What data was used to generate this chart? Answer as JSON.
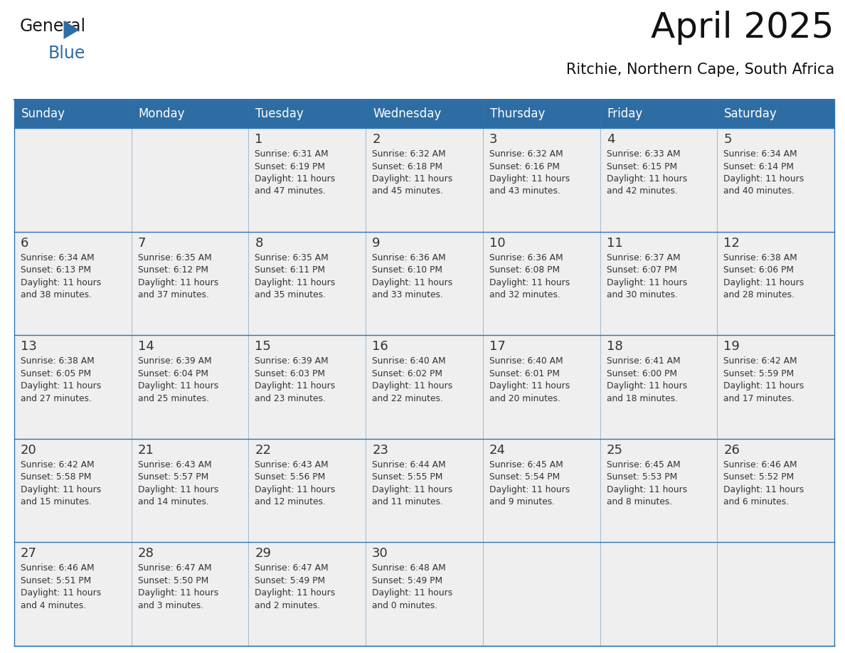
{
  "title": "April 2025",
  "subtitle": "Ritchie, Northern Cape, South Africa",
  "header_bg_color": "#2E6DA4",
  "header_text_color": "#FFFFFF",
  "cell_bg_color": "#EFEFEF",
  "text_color": "#333333",
  "line_color": "#2E75B6",
  "days_of_week": [
    "Sunday",
    "Monday",
    "Tuesday",
    "Wednesday",
    "Thursday",
    "Friday",
    "Saturday"
  ],
  "weeks": [
    [
      {
        "day": "",
        "info": ""
      },
      {
        "day": "",
        "info": ""
      },
      {
        "day": "1",
        "info": "Sunrise: 6:31 AM\nSunset: 6:19 PM\nDaylight: 11 hours\nand 47 minutes."
      },
      {
        "day": "2",
        "info": "Sunrise: 6:32 AM\nSunset: 6:18 PM\nDaylight: 11 hours\nand 45 minutes."
      },
      {
        "day": "3",
        "info": "Sunrise: 6:32 AM\nSunset: 6:16 PM\nDaylight: 11 hours\nand 43 minutes."
      },
      {
        "day": "4",
        "info": "Sunrise: 6:33 AM\nSunset: 6:15 PM\nDaylight: 11 hours\nand 42 minutes."
      },
      {
        "day": "5",
        "info": "Sunrise: 6:34 AM\nSunset: 6:14 PM\nDaylight: 11 hours\nand 40 minutes."
      }
    ],
    [
      {
        "day": "6",
        "info": "Sunrise: 6:34 AM\nSunset: 6:13 PM\nDaylight: 11 hours\nand 38 minutes."
      },
      {
        "day": "7",
        "info": "Sunrise: 6:35 AM\nSunset: 6:12 PM\nDaylight: 11 hours\nand 37 minutes."
      },
      {
        "day": "8",
        "info": "Sunrise: 6:35 AM\nSunset: 6:11 PM\nDaylight: 11 hours\nand 35 minutes."
      },
      {
        "day": "9",
        "info": "Sunrise: 6:36 AM\nSunset: 6:10 PM\nDaylight: 11 hours\nand 33 minutes."
      },
      {
        "day": "10",
        "info": "Sunrise: 6:36 AM\nSunset: 6:08 PM\nDaylight: 11 hours\nand 32 minutes."
      },
      {
        "day": "11",
        "info": "Sunrise: 6:37 AM\nSunset: 6:07 PM\nDaylight: 11 hours\nand 30 minutes."
      },
      {
        "day": "12",
        "info": "Sunrise: 6:38 AM\nSunset: 6:06 PM\nDaylight: 11 hours\nand 28 minutes."
      }
    ],
    [
      {
        "day": "13",
        "info": "Sunrise: 6:38 AM\nSunset: 6:05 PM\nDaylight: 11 hours\nand 27 minutes."
      },
      {
        "day": "14",
        "info": "Sunrise: 6:39 AM\nSunset: 6:04 PM\nDaylight: 11 hours\nand 25 minutes."
      },
      {
        "day": "15",
        "info": "Sunrise: 6:39 AM\nSunset: 6:03 PM\nDaylight: 11 hours\nand 23 minutes."
      },
      {
        "day": "16",
        "info": "Sunrise: 6:40 AM\nSunset: 6:02 PM\nDaylight: 11 hours\nand 22 minutes."
      },
      {
        "day": "17",
        "info": "Sunrise: 6:40 AM\nSunset: 6:01 PM\nDaylight: 11 hours\nand 20 minutes."
      },
      {
        "day": "18",
        "info": "Sunrise: 6:41 AM\nSunset: 6:00 PM\nDaylight: 11 hours\nand 18 minutes."
      },
      {
        "day": "19",
        "info": "Sunrise: 6:42 AM\nSunset: 5:59 PM\nDaylight: 11 hours\nand 17 minutes."
      }
    ],
    [
      {
        "day": "20",
        "info": "Sunrise: 6:42 AM\nSunset: 5:58 PM\nDaylight: 11 hours\nand 15 minutes."
      },
      {
        "day": "21",
        "info": "Sunrise: 6:43 AM\nSunset: 5:57 PM\nDaylight: 11 hours\nand 14 minutes."
      },
      {
        "day": "22",
        "info": "Sunrise: 6:43 AM\nSunset: 5:56 PM\nDaylight: 11 hours\nand 12 minutes."
      },
      {
        "day": "23",
        "info": "Sunrise: 6:44 AM\nSunset: 5:55 PM\nDaylight: 11 hours\nand 11 minutes."
      },
      {
        "day": "24",
        "info": "Sunrise: 6:45 AM\nSunset: 5:54 PM\nDaylight: 11 hours\nand 9 minutes."
      },
      {
        "day": "25",
        "info": "Sunrise: 6:45 AM\nSunset: 5:53 PM\nDaylight: 11 hours\nand 8 minutes."
      },
      {
        "day": "26",
        "info": "Sunrise: 6:46 AM\nSunset: 5:52 PM\nDaylight: 11 hours\nand 6 minutes."
      }
    ],
    [
      {
        "day": "27",
        "info": "Sunrise: 6:46 AM\nSunset: 5:51 PM\nDaylight: 11 hours\nand 4 minutes."
      },
      {
        "day": "28",
        "info": "Sunrise: 6:47 AM\nSunset: 5:50 PM\nDaylight: 11 hours\nand 3 minutes."
      },
      {
        "day": "29",
        "info": "Sunrise: 6:47 AM\nSunset: 5:49 PM\nDaylight: 11 hours\nand 2 minutes."
      },
      {
        "day": "30",
        "info": "Sunrise: 6:48 AM\nSunset: 5:49 PM\nDaylight: 11 hours\nand 0 minutes."
      },
      {
        "day": "",
        "info": ""
      },
      {
        "day": "",
        "info": ""
      },
      {
        "day": "",
        "info": ""
      }
    ]
  ],
  "logo_color_general": "#1a1a1a",
  "logo_color_blue": "#2E6DA4",
  "logo_triangle_color": "#2E6DA4",
  "title_fontsize": 36,
  "subtitle_fontsize": 15,
  "header_fontsize": 12,
  "day_num_fontsize": 13,
  "info_fontsize": 8.8
}
